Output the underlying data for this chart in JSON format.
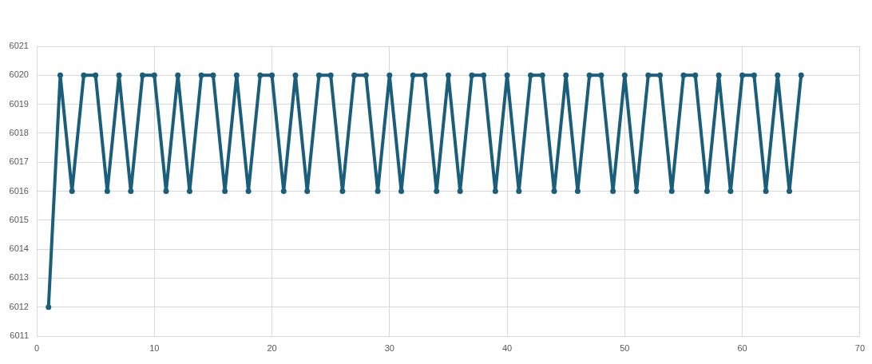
{
  "chart_data": {
    "type": "line",
    "x": [
      1,
      2,
      3,
      4,
      5,
      6,
      7,
      8,
      9,
      10,
      11,
      12,
      13,
      14,
      15,
      16,
      17,
      18,
      19,
      20,
      21,
      22,
      23,
      24,
      25,
      26,
      27,
      28,
      29,
      30,
      31,
      32,
      33,
      34,
      35,
      36,
      37,
      38,
      39,
      40,
      41,
      42,
      43,
      44,
      45,
      46,
      47,
      48,
      49,
      50,
      51,
      52,
      53,
      54,
      55,
      56,
      57,
      58,
      59,
      60,
      61,
      62,
      63,
      64,
      65
    ],
    "values": [
      6012,
      6020,
      6016,
      6020,
      6020,
      6016,
      6020,
      6016,
      6020,
      6020,
      6016,
      6020,
      6016,
      6020,
      6020,
      6016,
      6020,
      6016,
      6020,
      6020,
      6016,
      6020,
      6016,
      6020,
      6020,
      6016,
      6020,
      6020,
      6016,
      6020,
      6016,
      6020,
      6020,
      6016,
      6020,
      6016,
      6020,
      6020,
      6016,
      6020,
      6016,
      6020,
      6020,
      6016,
      6020,
      6016,
      6020,
      6020,
      6016,
      6020,
      6016,
      6020,
      6020,
      6016,
      6020,
      6020,
      6016,
      6020,
      6016,
      6020,
      6020,
      6016,
      6020,
      6016,
      6020
    ],
    "color": "#1b5e7b",
    "xlim": [
      0,
      70
    ],
    "xticks": [
      0,
      10,
      20,
      30,
      40,
      50,
      60,
      70
    ],
    "ylim": [
      6011,
      6021
    ],
    "yticks": [
      6011,
      6012,
      6013,
      6014,
      6015,
      6016,
      6017,
      6018,
      6019,
      6020,
      6021
    ],
    "grid": true,
    "marker": "circle",
    "line_style": "solid"
  }
}
